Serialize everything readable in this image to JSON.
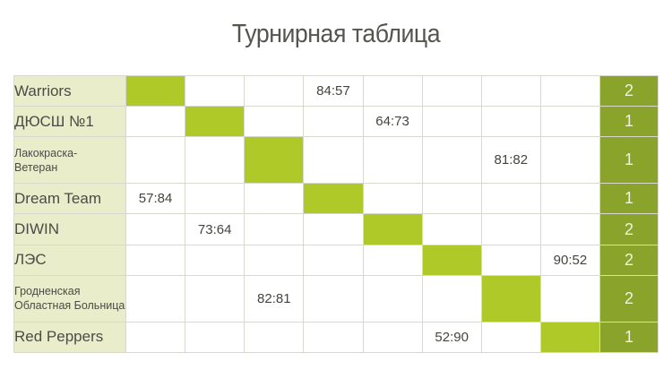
{
  "title": "Турнирная таблица",
  "colors": {
    "title_color": "#54554d",
    "text": "#4b4c45",
    "score_text": "#44453e",
    "name_bg": "#e9edca",
    "diagonal": "#afc929",
    "points_bg": "#8aa32b",
    "points_text": "#eff3dc",
    "grid": "#d8d8cf"
  },
  "chart_data": {
    "type": "table",
    "title": "Турнирная таблица",
    "games_columns": 8,
    "rows": [
      {
        "team_lines": [
          "Warriors"
        ],
        "games": [
          "",
          "",
          "",
          "84:57",
          "",
          "",
          "",
          ""
        ],
        "diagonal_col": 0,
        "points": "2"
      },
      {
        "team_lines": [
          "ДЮСШ №1"
        ],
        "games": [
          "",
          "",
          "",
          "",
          "64:73",
          "",
          "",
          ""
        ],
        "diagonal_col": 1,
        "points": "1"
      },
      {
        "team_lines": [
          "Лакокраска-",
          "Ветеран"
        ],
        "games": [
          "",
          "",
          "",
          "",
          "",
          "",
          "81:82",
          ""
        ],
        "diagonal_col": 2,
        "points": "1"
      },
      {
        "team_lines": [
          "Dream Team"
        ],
        "games": [
          "57:84",
          "",
          "",
          "",
          "",
          "",
          "",
          ""
        ],
        "diagonal_col": 3,
        "points": "1"
      },
      {
        "team_lines": [
          "DIWIN"
        ],
        "games": [
          "",
          "73:64",
          "",
          "",
          "",
          "",
          "",
          ""
        ],
        "diagonal_col": 4,
        "points": "2"
      },
      {
        "team_lines": [
          "ЛЭС"
        ],
        "games": [
          "",
          "",
          "",
          "",
          "",
          "",
          "",
          "90:52"
        ],
        "diagonal_col": 5,
        "points": "2"
      },
      {
        "team_lines": [
          "Гродненская",
          "Областная Больница"
        ],
        "games": [
          "",
          "",
          "82:81",
          "",
          "",
          "",
          "",
          ""
        ],
        "diagonal_col": 6,
        "points": "2"
      },
      {
        "team_lines": [
          "Red Peppers"
        ],
        "games": [
          "",
          "",
          "",
          "",
          "",
          "52:90",
          "",
          ""
        ],
        "diagonal_col": 7,
        "points": "1"
      }
    ]
  }
}
